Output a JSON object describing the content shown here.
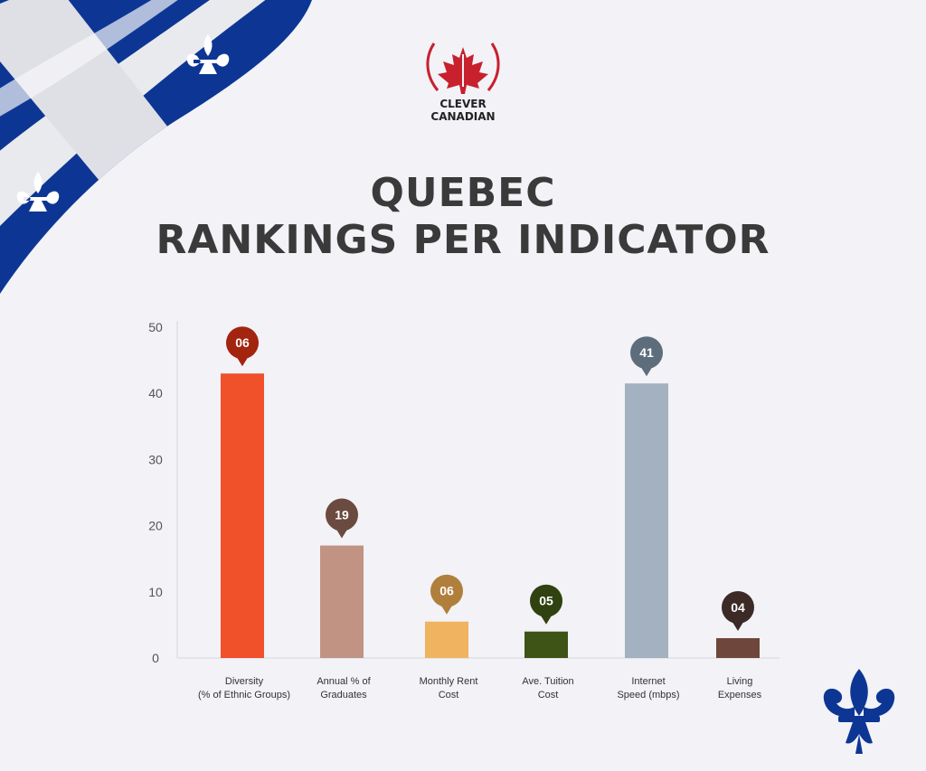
{
  "brand": {
    "line1": "CLEVER",
    "line2": "CANADIAN"
  },
  "title": {
    "line1": "QUEBEC",
    "line2": "RANKINGS PER INDICATOR"
  },
  "colors": {
    "flag_blue": "#0d3694",
    "flag_white": "#ffffff",
    "logo_red": "#c8202d",
    "title": "#3a3a3a",
    "background": "#f2f2f7"
  },
  "chart_data": {
    "type": "bar",
    "categories": [
      [
        "Diversity",
        "(% of Ethnic Groups)"
      ],
      [
        "Annual % of",
        "Graduates"
      ],
      [
        "Monthly Rent",
        "Cost"
      ],
      [
        "Ave. Tuition",
        "Cost"
      ],
      [
        "Internet",
        "Speed (mbps)"
      ],
      [
        "Living",
        "Expenses"
      ]
    ],
    "values": [
      43,
      17,
      5.5,
      4,
      41.5,
      3
    ],
    "rank_labels": [
      "06",
      "19",
      "06",
      "05",
      "41",
      "04"
    ],
    "bar_colors": [
      "#f0502a",
      "#c09383",
      "#f0b35f",
      "#3e5417",
      "#a3b1c0",
      "#6e463b"
    ],
    "marker_colors": [
      "#a3240f",
      "#6b4a3f",
      "#b07f3c",
      "#2f4210",
      "#5e6d7c",
      "#3b2a25"
    ],
    "yticks": [
      0,
      10,
      20,
      30,
      40,
      50
    ],
    "ylim": [
      0,
      50
    ],
    "grid": false,
    "legend": "none"
  }
}
